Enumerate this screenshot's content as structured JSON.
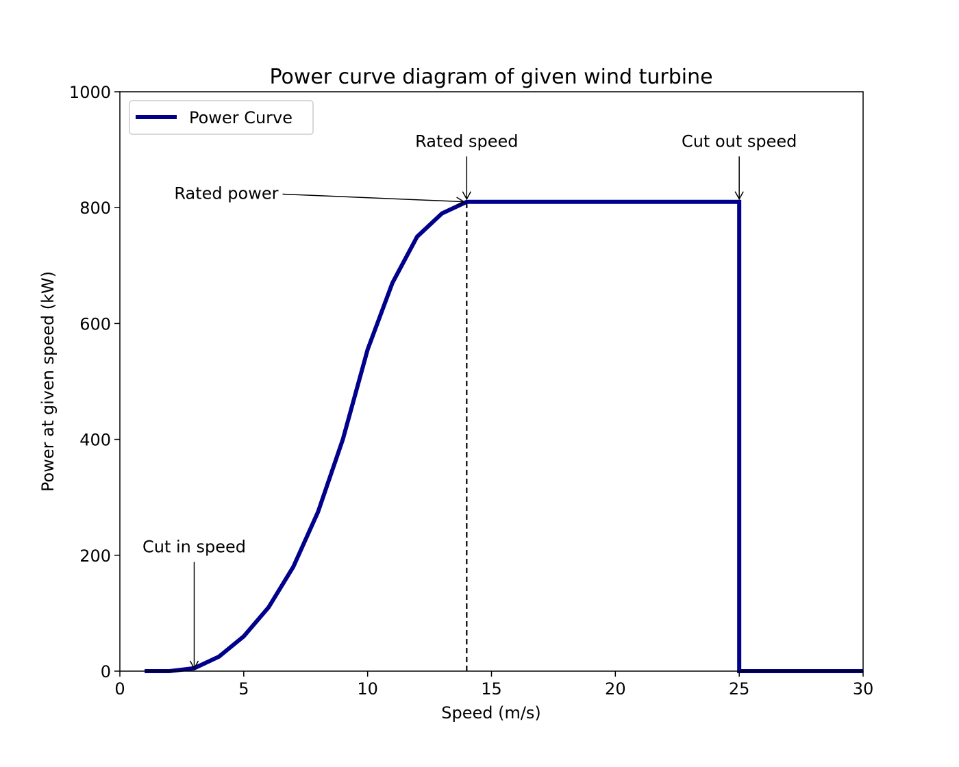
{
  "chart_data": {
    "type": "line",
    "title": "Power curve diagram of given wind turbine",
    "xlabel": "Speed (m/s)",
    "ylabel": "Power at given speed (kW)",
    "xlim": [
      0,
      30
    ],
    "ylim": [
      0,
      1000
    ],
    "xticks": [
      0,
      5,
      10,
      15,
      20,
      25,
      30
    ],
    "yticks": [
      0,
      200,
      400,
      600,
      800,
      1000
    ],
    "grid": false,
    "legend_position": "top-left",
    "series": [
      {
        "name": "Power Curve",
        "color": "#00008b",
        "x": [
          1,
          2,
          3,
          4,
          5,
          6,
          7,
          8,
          9,
          10,
          11,
          12,
          13,
          14,
          15,
          16,
          17,
          18,
          19,
          20,
          21,
          22,
          23,
          24,
          25,
          25,
          26,
          27,
          28,
          29,
          30
        ],
        "y": [
          0,
          0,
          5,
          25,
          60,
          110,
          180,
          275,
          400,
          555,
          670,
          750,
          790,
          810,
          810,
          810,
          810,
          810,
          810,
          810,
          810,
          810,
          810,
          810,
          810,
          0,
          0,
          0,
          0,
          0,
          0
        ]
      }
    ],
    "reference_lines": [
      {
        "orientation": "vertical",
        "x": 14,
        "y_range": [
          0,
          810
        ],
        "style": "dashed",
        "color": "#000000"
      }
    ],
    "annotations": [
      {
        "text": "Rated speed",
        "point": [
          14,
          810
        ],
        "text_at": [
          14,
          905
        ],
        "align": "middle"
      },
      {
        "text": "Cut out speed",
        "point": [
          25,
          810
        ],
        "text_at": [
          25,
          905
        ],
        "align": "middle"
      },
      {
        "text": "Rated power",
        "point": [
          14,
          810
        ],
        "text_at": [
          6.4,
          815
        ],
        "align": "end"
      },
      {
        "text": "Cut in speed",
        "point": [
          3,
          0
        ],
        "text_at": [
          3,
          205
        ],
        "align": "middle"
      }
    ]
  }
}
